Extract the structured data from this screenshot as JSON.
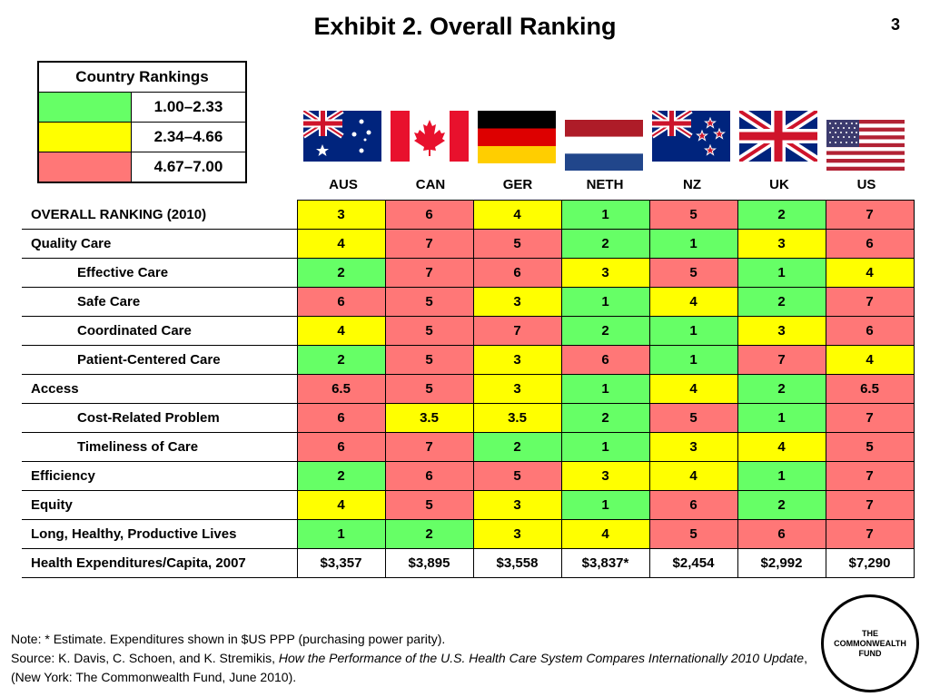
{
  "title": "Exhibit 2. Overall Ranking",
  "page_number": "3",
  "legend": {
    "header": "Country Rankings",
    "items": [
      {
        "color": "#66ff66",
        "range": "1.00–2.33"
      },
      {
        "color": "#ffff00",
        "range": "2.34–4.66"
      },
      {
        "color": "#ff7777",
        "range": "4.67–7.00"
      }
    ]
  },
  "countries": [
    {
      "code": "AUS",
      "flag": "australia-flag-icon"
    },
    {
      "code": "CAN",
      "flag": "canada-flag-icon"
    },
    {
      "code": "GER",
      "flag": "germany-flag-icon"
    },
    {
      "code": "NETH",
      "flag": "netherlands-flag-icon"
    },
    {
      "code": "NZ",
      "flag": "new-zealand-flag-icon"
    },
    {
      "code": "UK",
      "flag": "uk-flag-icon"
    },
    {
      "code": "US",
      "flag": "us-flag-icon"
    }
  ],
  "rows": [
    {
      "label": "OVERALL RANKING (2010)",
      "indent": false,
      "values": [
        "3",
        "6",
        "4",
        "1",
        "5",
        "2",
        "7"
      ],
      "colors": [
        "yellow",
        "red",
        "yellow",
        "green",
        "red",
        "green",
        "red"
      ]
    },
    {
      "label": "Quality Care",
      "indent": false,
      "values": [
        "4",
        "7",
        "5",
        "2",
        "1",
        "3",
        "6"
      ],
      "colors": [
        "yellow",
        "red",
        "red",
        "green",
        "green",
        "yellow",
        "red"
      ]
    },
    {
      "label": "Effective Care",
      "indent": true,
      "values": [
        "2",
        "7",
        "6",
        "3",
        "5",
        "1",
        "4"
      ],
      "colors": [
        "green",
        "red",
        "red",
        "yellow",
        "red",
        "green",
        "yellow"
      ]
    },
    {
      "label": "Safe Care",
      "indent": true,
      "values": [
        "6",
        "5",
        "3",
        "1",
        "4",
        "2",
        "7"
      ],
      "colors": [
        "red",
        "red",
        "yellow",
        "green",
        "yellow",
        "green",
        "red"
      ]
    },
    {
      "label": "Coordinated Care",
      "indent": true,
      "values": [
        "4",
        "5",
        "7",
        "2",
        "1",
        "3",
        "6"
      ],
      "colors": [
        "yellow",
        "red",
        "red",
        "green",
        "green",
        "yellow",
        "red"
      ]
    },
    {
      "label": "Patient-Centered Care",
      "indent": true,
      "values": [
        "2",
        "5",
        "3",
        "6",
        "1",
        "7",
        "4"
      ],
      "colors": [
        "green",
        "red",
        "yellow",
        "red",
        "green",
        "red",
        "yellow"
      ]
    },
    {
      "label": "Access",
      "indent": false,
      "values": [
        "6.5",
        "5",
        "3",
        "1",
        "4",
        "2",
        "6.5"
      ],
      "colors": [
        "red",
        "red",
        "yellow",
        "green",
        "yellow",
        "green",
        "red"
      ]
    },
    {
      "label": "Cost-Related Problem",
      "indent": true,
      "values": [
        "6",
        "3.5",
        "3.5",
        "2",
        "5",
        "1",
        "7"
      ],
      "colors": [
        "red",
        "yellow",
        "yellow",
        "green",
        "red",
        "green",
        "red"
      ]
    },
    {
      "label": "Timeliness of Care",
      "indent": true,
      "values": [
        "6",
        "7",
        "2",
        "1",
        "3",
        "4",
        "5"
      ],
      "colors": [
        "red",
        "red",
        "green",
        "green",
        "yellow",
        "yellow",
        "red"
      ]
    },
    {
      "label": "Efficiency",
      "indent": false,
      "values": [
        "2",
        "6",
        "5",
        "3",
        "4",
        "1",
        "7"
      ],
      "colors": [
        "green",
        "red",
        "red",
        "yellow",
        "yellow",
        "green",
        "red"
      ]
    },
    {
      "label": "Equity",
      "indent": false,
      "values": [
        "4",
        "5",
        "3",
        "1",
        "6",
        "2",
        "7"
      ],
      "colors": [
        "yellow",
        "red",
        "yellow",
        "green",
        "red",
        "green",
        "red"
      ]
    },
    {
      "label": "Long, Healthy, Productive Lives",
      "indent": false,
      "values": [
        "1",
        "2",
        "3",
        "4",
        "5",
        "6",
        "7"
      ],
      "colors": [
        "green",
        "green",
        "yellow",
        "yellow",
        "red",
        "red",
        "red"
      ]
    },
    {
      "label": "Health Expenditures/Capita, 2007",
      "indent": false,
      "values": [
        "$3,357",
        "$3,895",
        "$3,558",
        "$3,837*",
        "$2,454",
        "$2,992",
        "$7,290"
      ],
      "colors": [
        "white",
        "white",
        "white",
        "white",
        "white",
        "white",
        "white"
      ]
    }
  ],
  "footer": {
    "note": "Note: * Estimate. Expenditures shown in $US PPP (purchasing power parity).",
    "source_prefix": "Source: K. Davis, C. Schoen, and K. Stremikis, ",
    "source_title": "How the Performance of the U.S. Health Care System Compares Internationally 2010 Update",
    "source_suffix": ", (New York: The Commonwealth Fund, June 2010)."
  },
  "logo": {
    "line1": "THE",
    "line2": "COMMONWEALTH",
    "line3": "FUND"
  }
}
